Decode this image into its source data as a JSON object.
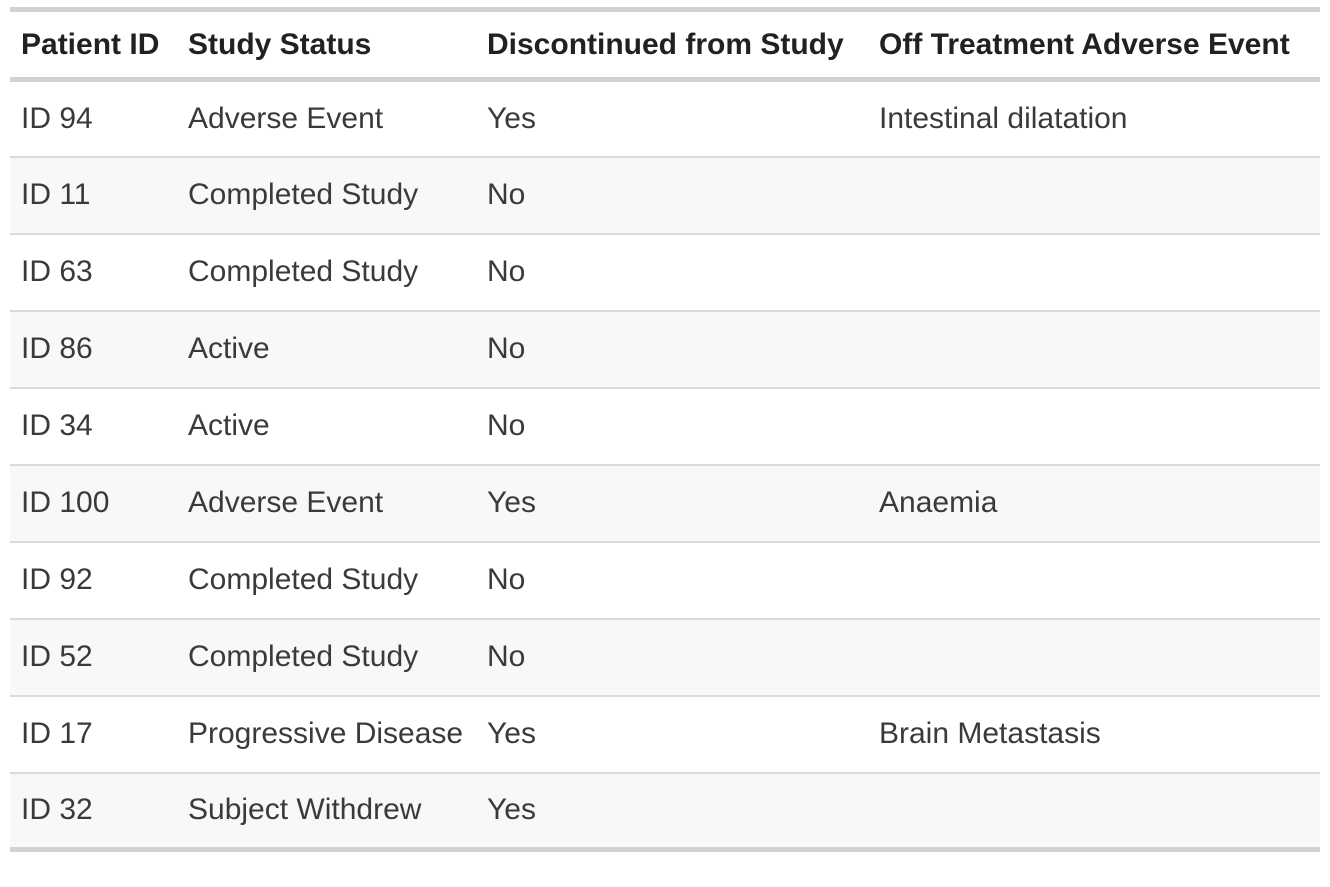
{
  "table": {
    "name": "patient-study-status-table",
    "columns": [
      {
        "id": "patient-id",
        "label": "Patient ID"
      },
      {
        "id": "study-status",
        "label": "Study Status"
      },
      {
        "id": "discontinued",
        "label": "Discontinued from Study"
      },
      {
        "id": "adverse-event",
        "label": "Off Treatment Adverse Event"
      }
    ],
    "rows": [
      {
        "patient_id": "ID 94",
        "study_status": "Adverse Event",
        "discontinued": "Yes",
        "adverse_event": "Intestinal dilatation"
      },
      {
        "patient_id": "ID 11",
        "study_status": "Completed Study",
        "discontinued": "No",
        "adverse_event": ""
      },
      {
        "patient_id": "ID 63",
        "study_status": "Completed Study",
        "discontinued": "No",
        "adverse_event": ""
      },
      {
        "patient_id": "ID 86",
        "study_status": "Active",
        "discontinued": "No",
        "adverse_event": ""
      },
      {
        "patient_id": "ID 34",
        "study_status": "Active",
        "discontinued": "No",
        "adverse_event": ""
      },
      {
        "patient_id": "ID 100",
        "study_status": "Adverse Event",
        "discontinued": "Yes",
        "adverse_event": "Anaemia"
      },
      {
        "patient_id": "ID 92",
        "study_status": "Completed Study",
        "discontinued": "No",
        "adverse_event": ""
      },
      {
        "patient_id": "ID 52",
        "study_status": "Completed Study",
        "discontinued": "No",
        "adverse_event": ""
      },
      {
        "patient_id": "ID 17",
        "study_status": "Progressive Disease",
        "discontinued": "Yes",
        "adverse_event": "Brain Metastasis"
      },
      {
        "patient_id": "ID 32",
        "study_status": "Subject Withdrew",
        "discontinued": "Yes",
        "adverse_event": ""
      }
    ]
  },
  "colors": {
    "stripe_background": "#f8f8f8",
    "row_divider": "#dbdbdb",
    "frame_border": "#d2d2d2",
    "header_text": "#212121",
    "body_text": "#3a3a3a",
    "page_background": "#ffffff"
  }
}
